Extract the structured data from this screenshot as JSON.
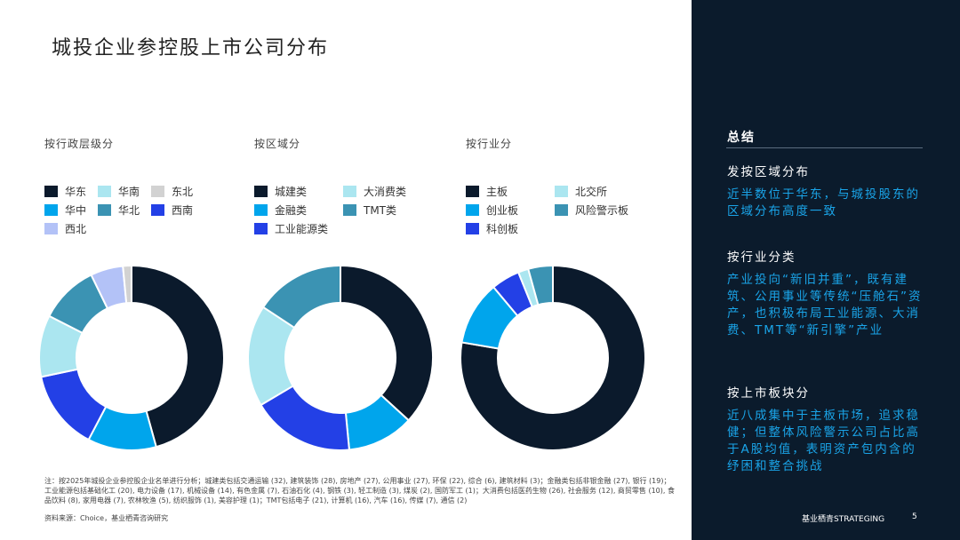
{
  "title": "城投企业参控股上市公司分布",
  "chart_data": [
    {
      "type": "pie",
      "title": "按行政层级分",
      "hole": true,
      "categories": [
        "华东",
        "华中",
        "西南",
        "华南",
        "华北",
        "西北",
        "东北"
      ],
      "values": [
        45.7,
        12,
        14,
        10.8,
        10.3,
        5.7,
        1.5
      ],
      "colors": [
        "#0b1a2c",
        "#00a5ec",
        "#2340e6",
        "#abe6f0",
        "#3b93b3",
        "#b3c2f7",
        "#d2d2d2"
      ],
      "legend_order": [
        0,
        3,
        6,
        1,
        4,
        2,
        5
      ]
    },
    {
      "type": "pie",
      "title": "按区域分",
      "hole": true,
      "categories": [
        "城建类",
        "金融类",
        "工业能源类",
        "大消费类",
        "TMT类"
      ],
      "values": [
        145,
        46,
        71,
        70,
        62
      ],
      "colors": [
        "#0b1a2c",
        "#00a5ec",
        "#2340e6",
        "#abe6f0",
        "#3b93b3"
      ],
      "legend_order": [
        0,
        3,
        1,
        4,
        2
      ]
    },
    {
      "type": "pie",
      "title": "按行业分",
      "hole": true,
      "categories": [
        "主板",
        "创业板",
        "科创板",
        "北交所",
        "风险警示板"
      ],
      "values": [
        77.7,
        11.2,
        5,
        1.8,
        4.3
      ],
      "colors": [
        "#0b1a2c",
        "#00a5ec",
        "#2340e6",
        "#abe6f0",
        "#3b93b3"
      ],
      "legend_order": [
        0,
        3,
        1,
        4,
        2
      ]
    }
  ],
  "note": "注：按2025年城投企业参控股企业名单进行分析；城建类包括交通运输 (32), 建筑装饰 (28), 房地产 (27), 公用事业 (27), 环保 (22), 综合 (6), 建筑材料 (3)；金融类包括非银金融 (27), 银行 (19)；工业能源包括基础化工 (20), 电力设备 (17), 机械设备 (14), 有色金属 (7), 石油石化 (4), 钢铁 (3), 轻工制造 (3), 煤炭 (2), 国防军工 (1)；大消费包括医药生物 (26), 社会服务 (12), 商贸零售 (10), 食品饮料 (8), 家用电器 (7), 农林牧渔 (5), 纺织服饰 (1), 美容护理 (1)；TMT包括电子 (21), 计算机 (16), 汽车 (16), 传媒 (7), 通信 (2)",
  "source": "资料来源：Choice，基业栖青咨询研究",
  "summary": {
    "heading": "总结",
    "sections": [
      {
        "title": "发按区域分布",
        "body": "近半数位于华东，与城投股东的区域分布高度一致"
      },
      {
        "title": "按行业分类",
        "body": "产业投向“新旧并重”，既有建筑、公用事业等传统“压舱石”资产，也积极布局工业能源、大消费、TMT等“新引擎”产业"
      },
      {
        "title": "按上市板块分",
        "body": "近八成集中于主板市场，追求稳健；但整体风险警示公司占比高于A股均值，表明资产包内含的纾困和整合挑战"
      }
    ]
  },
  "footer": {
    "brand": "基业栖青STRATEGING",
    "page": "5"
  }
}
